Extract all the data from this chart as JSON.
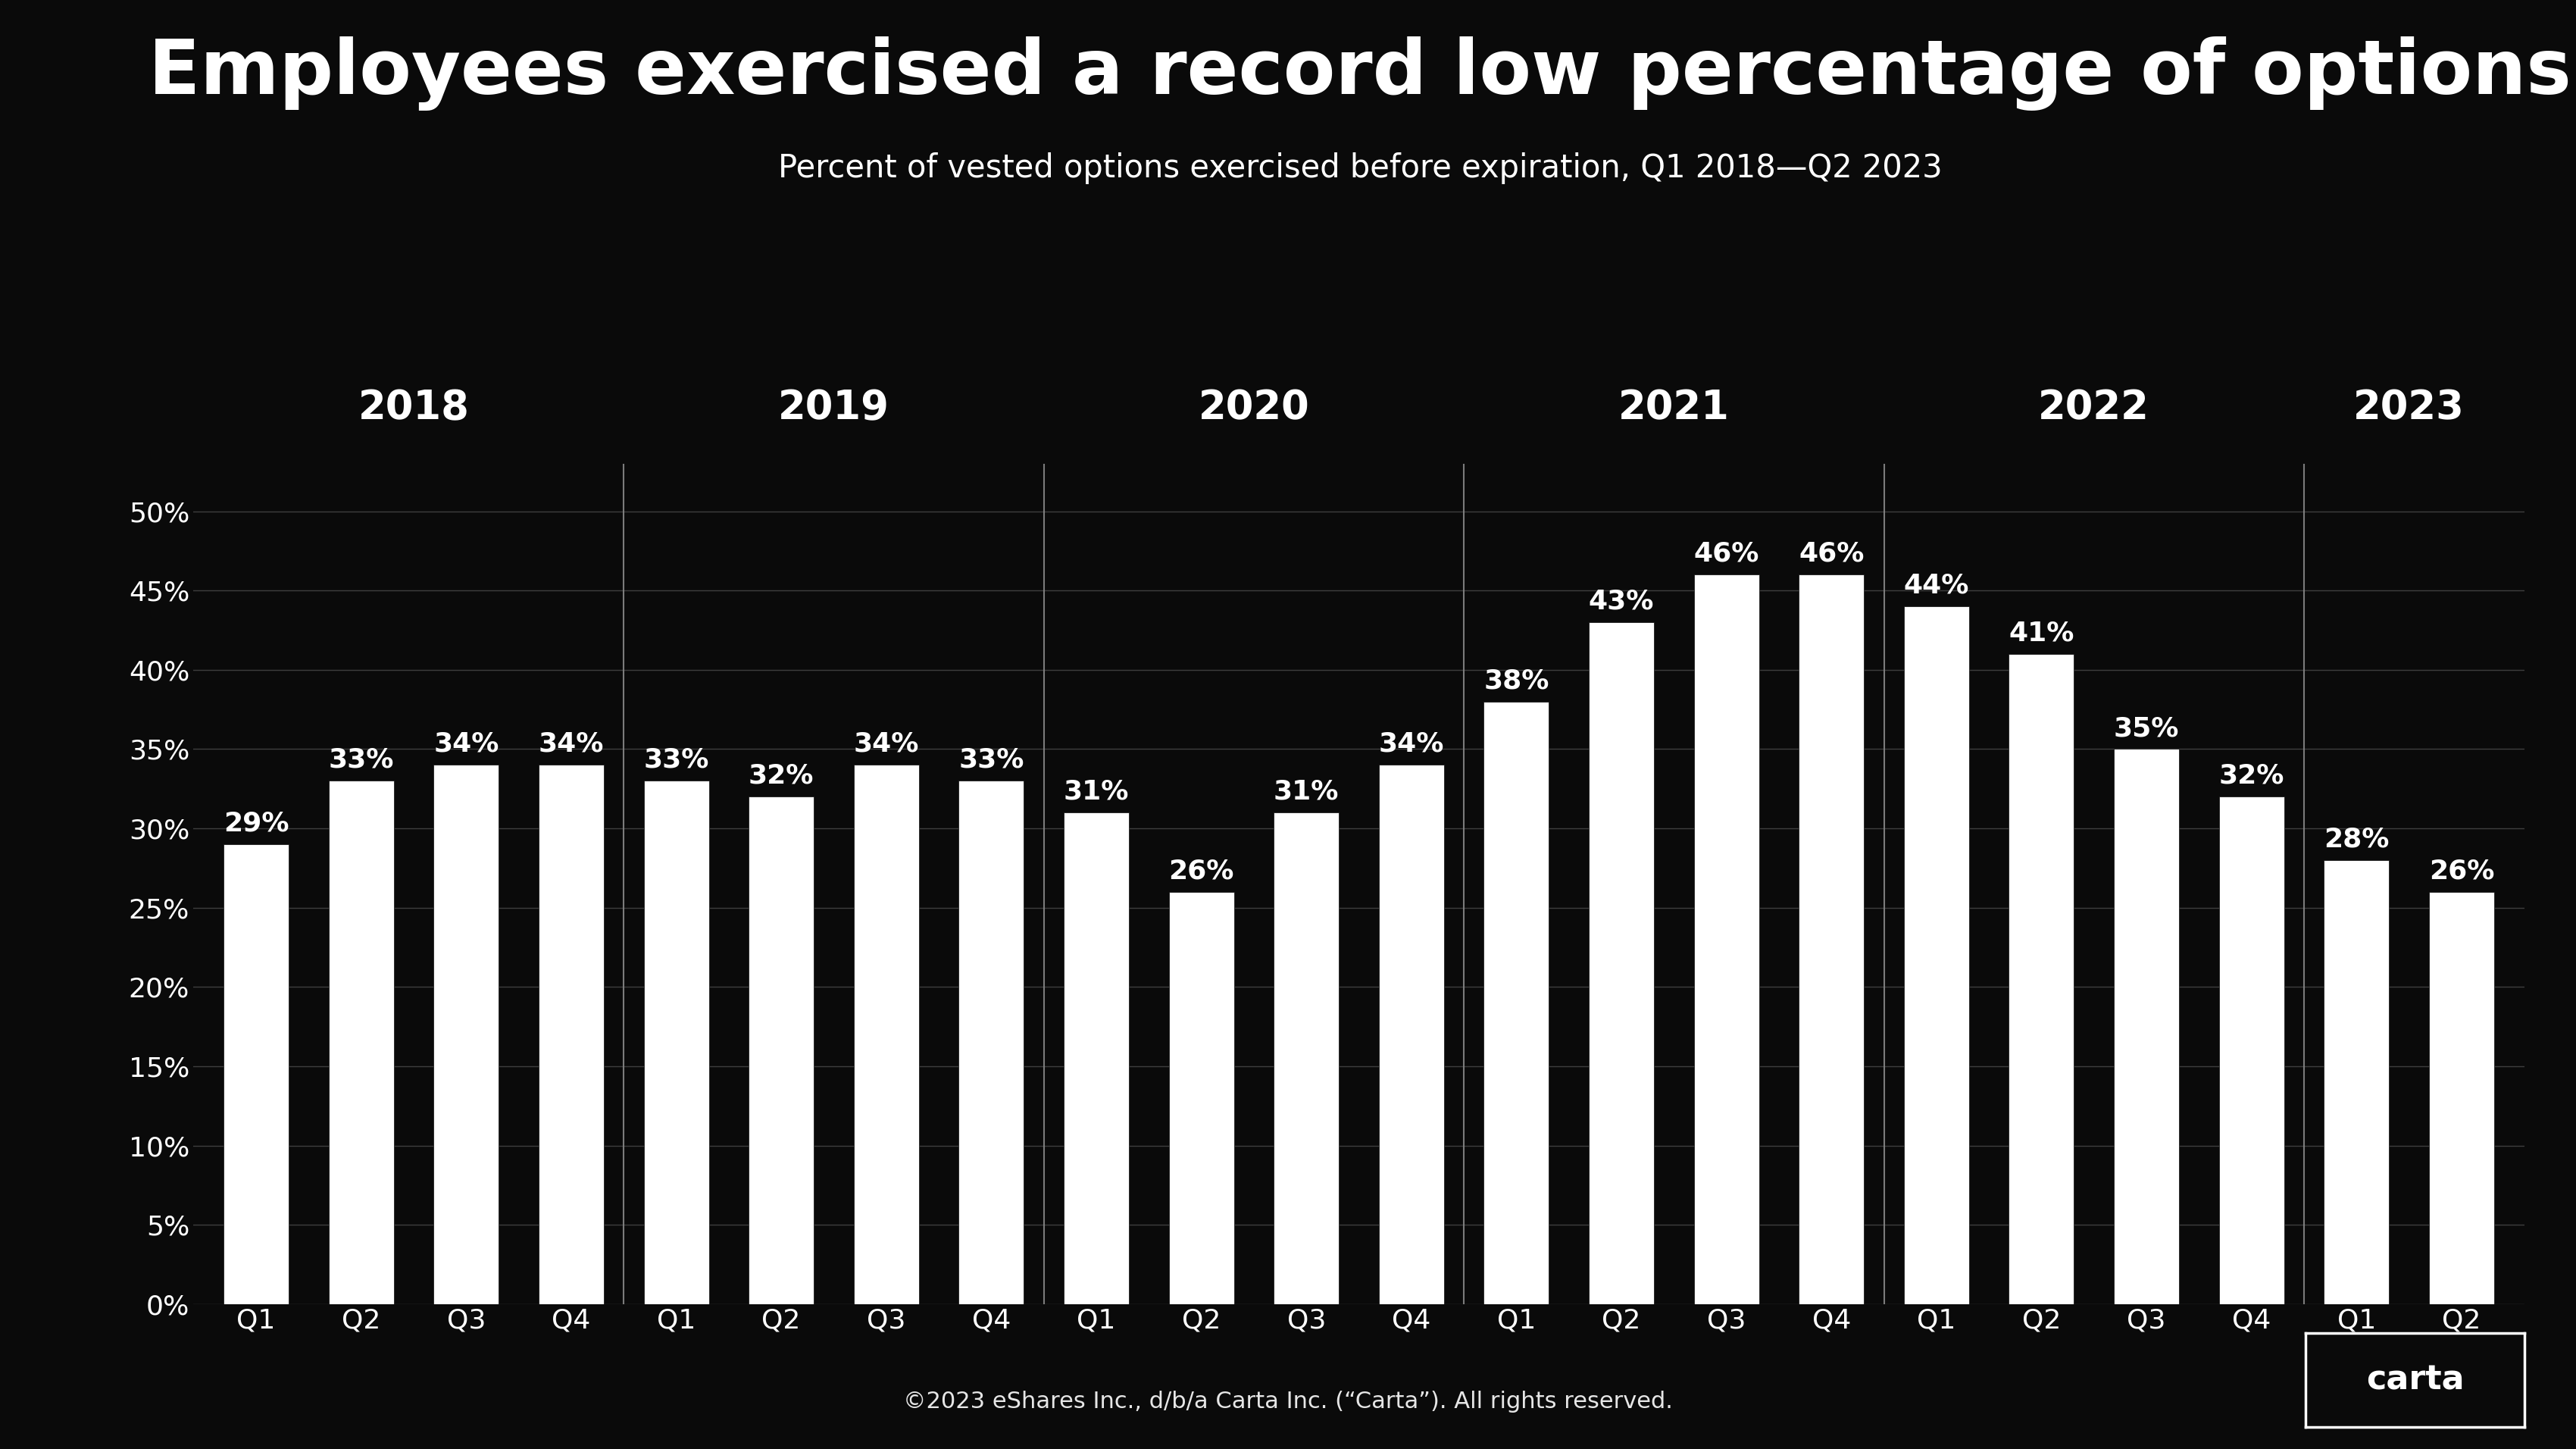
{
  "title": "Employees exercised a record low percentage of options",
  "subtitle": "Percent of vested options exercised before expiration, Q1 2018—Q2 2023",
  "copyright": "©2023 eShares Inc., d/b/a Carta Inc. (“Carta”). All rights reserved.",
  "background_color": "#0a0a0a",
  "bar_color": "#ffffff",
  "text_color": "#ffffff",
  "grid_color": "#555555",
  "separator_color": "#888888",
  "categories": [
    "Q1",
    "Q2",
    "Q3",
    "Q4",
    "Q1",
    "Q2",
    "Q3",
    "Q4",
    "Q1",
    "Q2",
    "Q3",
    "Q4",
    "Q1",
    "Q2",
    "Q3",
    "Q4",
    "Q1",
    "Q2",
    "Q3",
    "Q4",
    "Q1",
    "Q2"
  ],
  "values": [
    29,
    33,
    34,
    34,
    33,
    32,
    34,
    33,
    31,
    26,
    31,
    34,
    38,
    43,
    46,
    46,
    44,
    41,
    35,
    32,
    28,
    26
  ],
  "year_labels": [
    "2018",
    "2019",
    "2020",
    "2021",
    "2022",
    "2023"
  ],
  "year_center_indices": [
    1.5,
    5.5,
    9.5,
    13.5,
    17.5,
    21.0
  ],
  "year_separators": [
    4.5,
    8.5,
    12.5,
    16.5,
    20.5
  ],
  "yticks": [
    0,
    5,
    10,
    15,
    20,
    25,
    30,
    35,
    40,
    45,
    50
  ],
  "ylim": [
    0,
    53
  ],
  "title_fontsize": 72,
  "subtitle_fontsize": 30,
  "bar_label_fontsize": 26,
  "year_label_fontsize": 38,
  "tick_fontsize": 26,
  "xtick_fontsize": 26,
  "copyright_fontsize": 22,
  "carta_fontsize": 32
}
